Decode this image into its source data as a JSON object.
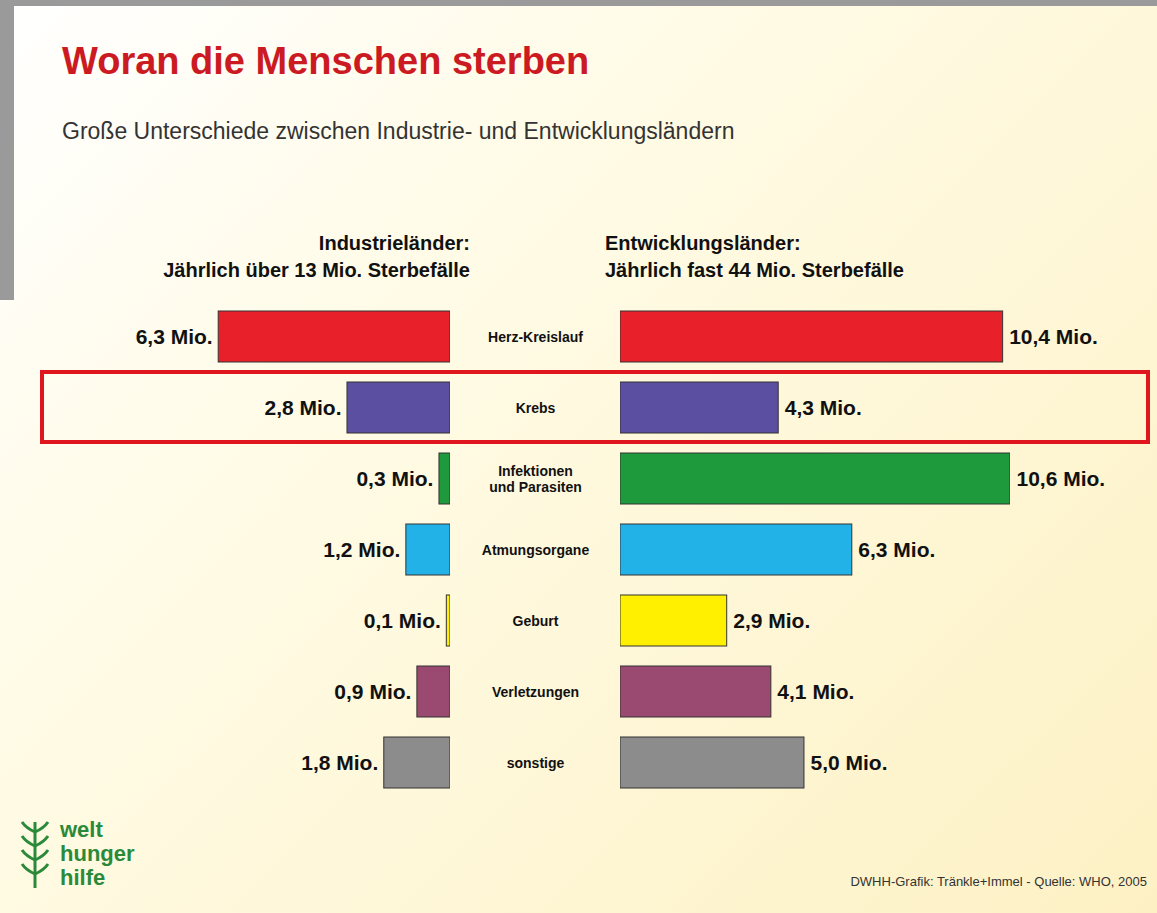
{
  "chart_data": {
    "type": "bar",
    "orientation": "horizontal",
    "title": "Woran die Menschen sterben",
    "subtitle": "Große Unterschiede zwischen Industrie- und Entwicklungsländern",
    "categories": [
      "Herz-Kreislauf",
      "Krebs",
      "Infektionen und Parasiten",
      "Atmungsorgane",
      "Geburt",
      "Verletzungen",
      "sonstige"
    ],
    "colors": [
      "#e8202a",
      "#5a4fa0",
      "#1e9a3c",
      "#22b2e8",
      "#fff000",
      "#9a4a70",
      "#8c8c8c"
    ],
    "series": [
      {
        "name": "Industrieländer:",
        "subtitle": "Jährlich über 13 Mio. Sterbefälle",
        "values": [
          6.3,
          2.8,
          0.3,
          1.2,
          0.1,
          0.9,
          1.8
        ],
        "value_labels": [
          "6,3 Mio.",
          "2,8 Mio.",
          "0,3 Mio.",
          "1,2 Mio.",
          "0,1 Mio.",
          "0,9 Mio.",
          "1,8 Mio."
        ]
      },
      {
        "name": "Entwicklungsländer:",
        "subtitle": "Jährlich fast 44 Mio. Sterbefälle",
        "values": [
          10.4,
          4.3,
          10.6,
          6.3,
          2.9,
          4.1,
          5.0
        ],
        "value_labels": [
          "10,4 Mio.",
          "4,3 Mio.",
          "10,6 Mio.",
          "6,3 Mio.",
          "2,9 Mio.",
          "4,1 Mio.",
          "5,0 Mio."
        ]
      }
    ],
    "data_labels": true,
    "tick_labels": false,
    "source": "DWHH-Grafik: Tränkle+Immel - Quelle: WHO, 2005",
    "logo": "welt hunger hilfe"
  }
}
